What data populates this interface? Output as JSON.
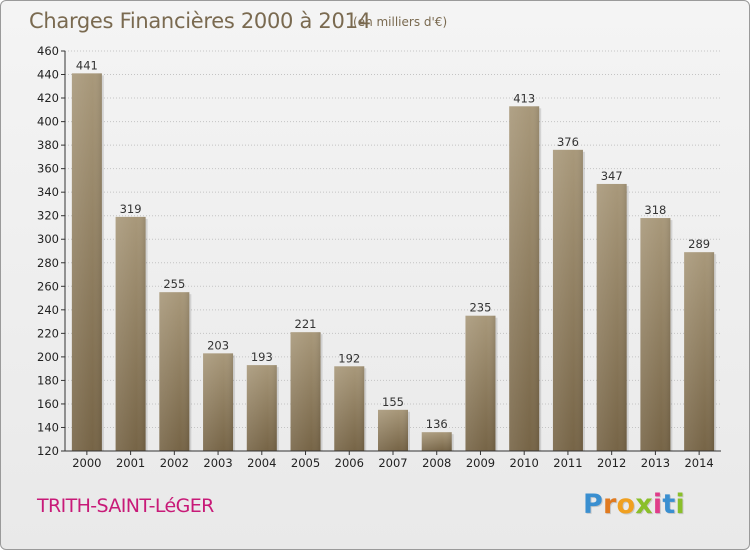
{
  "header": {
    "title": "Charges Financières 2000 à 2014",
    "subtitle": "(en milliers d'€)"
  },
  "footer": {
    "place": "TRITH-SAINT-LéGER",
    "logo_letters": [
      "P",
      "r",
      "o",
      "x",
      "i",
      "t",
      "i"
    ]
  },
  "colors": {
    "bar_top": "#a8987a",
    "bar_bottom": "#766446",
    "title": "#7a6a50",
    "place": "#c81a78",
    "logo": [
      "#3a8fd0",
      "#e07a20",
      "#f0a020",
      "#8abf2a",
      "#e03c8a",
      "#3a8fd0",
      "#8abf2a"
    ]
  },
  "chart_data": {
    "type": "bar",
    "title": "Charges Financières 2000 à 2014",
    "subtitle": "(en milliers d'€)",
    "categories": [
      "2000",
      "2001",
      "2002",
      "2003",
      "2004",
      "2005",
      "2006",
      "2007",
      "2008",
      "2009",
      "2010",
      "2011",
      "2012",
      "2013",
      "2014"
    ],
    "values": [
      441,
      319,
      255,
      203,
      193,
      221,
      192,
      155,
      136,
      235,
      413,
      376,
      347,
      318,
      289
    ],
    "xlabel": "",
    "ylabel": "",
    "ylim": [
      120,
      460
    ],
    "yticks": [
      120,
      140,
      160,
      180,
      200,
      220,
      240,
      260,
      280,
      300,
      320,
      340,
      360,
      380,
      400,
      420,
      440,
      460
    ],
    "grid": "horizontal",
    "data_labels": true,
    "legend": "none"
  }
}
